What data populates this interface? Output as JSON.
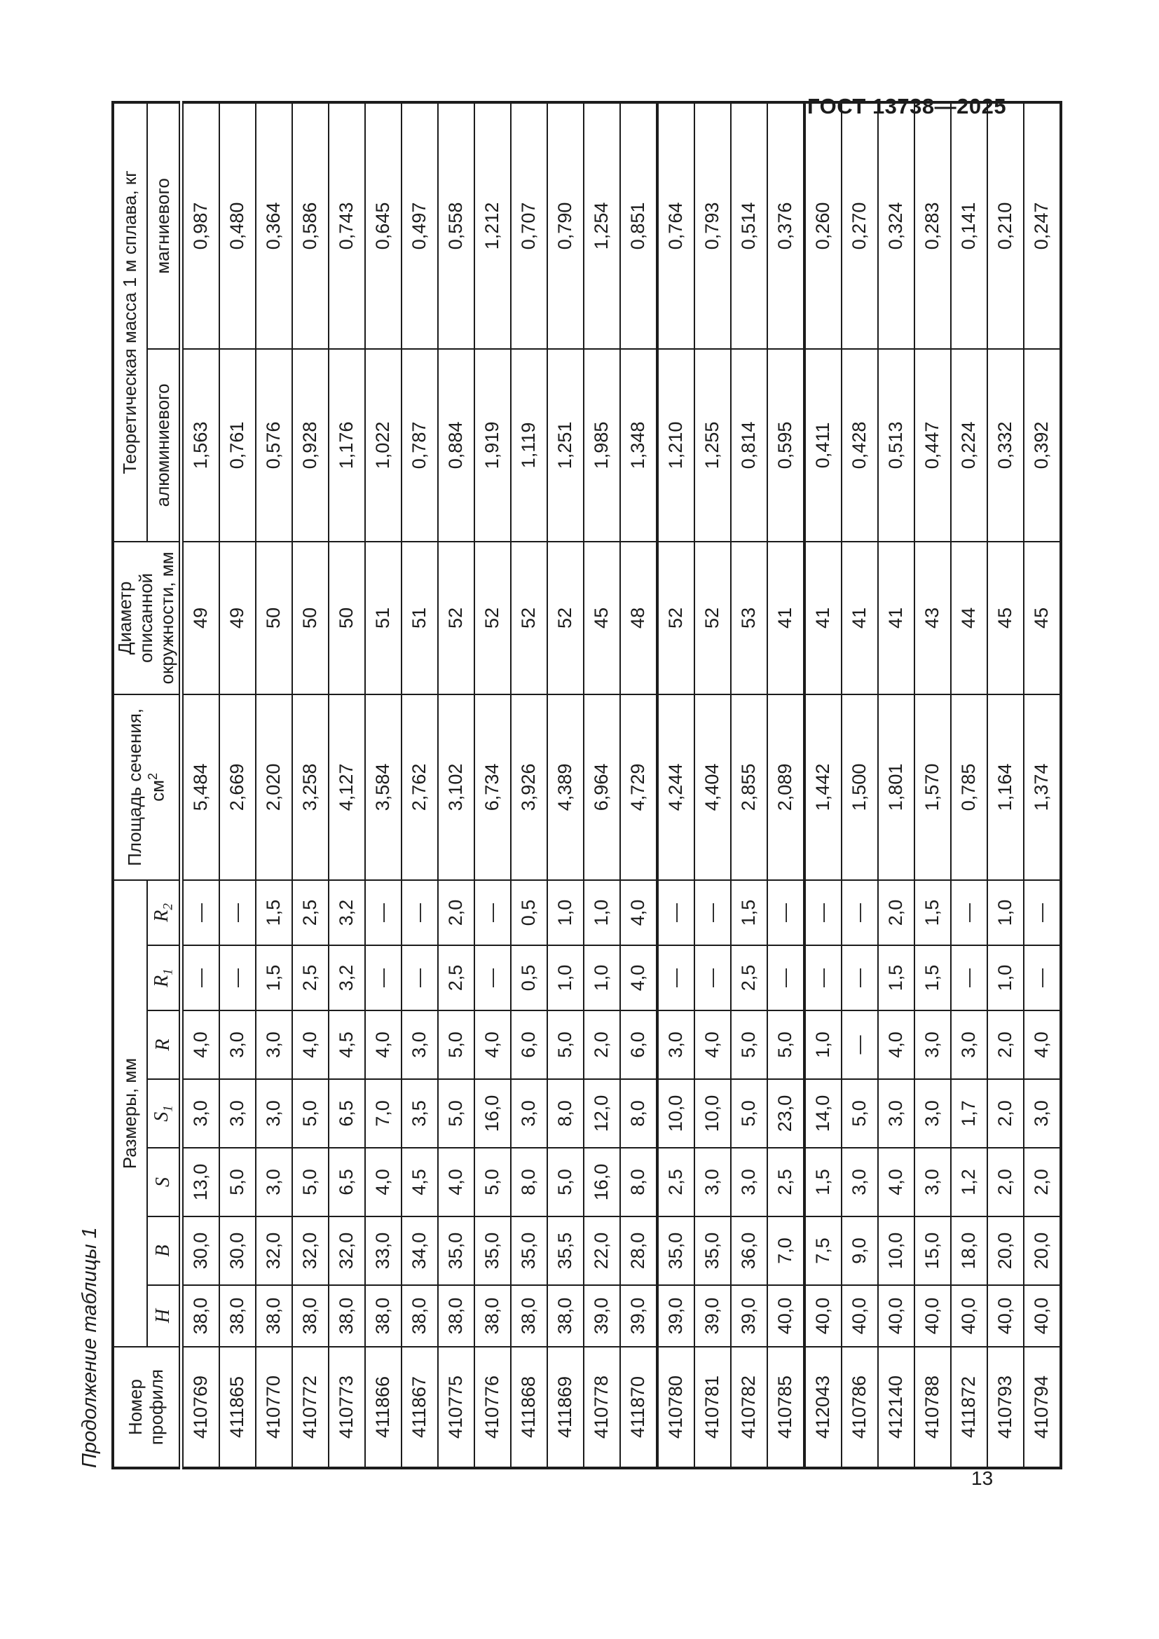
{
  "page": {
    "header": "ГОСТ 13738—2025",
    "number": "13"
  },
  "caption": "Продолжение таблицы 1",
  "table": {
    "col_profile": "Номер профиля",
    "group_dims": "Размеры, мм",
    "dim_cols": [
      {
        "main": "H",
        "sub": ""
      },
      {
        "main": "B",
        "sub": ""
      },
      {
        "main": "S",
        "sub": ""
      },
      {
        "main": "S",
        "sub": "1"
      },
      {
        "main": "R",
        "sub": ""
      },
      {
        "main": "R",
        "sub": "1"
      },
      {
        "main": "R",
        "sub": "2"
      }
    ],
    "col_area": {
      "text": "Площадь сечения, см",
      "sup": "2"
    },
    "col_diameter": "Диаметр описанной окружности, мм",
    "group_mass": "Теоретическая масса 1 м сплава, кг",
    "mass_cols": [
      "алюминиевого",
      "магниевого"
    ],
    "rows": [
      [
        "410769",
        "38,0",
        "30,0",
        "13,0",
        "3,0",
        "4,0",
        "—",
        "—",
        "5,484",
        "49",
        "1,563",
        "0,987"
      ],
      [
        "411865",
        "38,0",
        "30,0",
        "5,0",
        "3,0",
        "3,0",
        "—",
        "—",
        "2,669",
        "49",
        "0,761",
        "0,480"
      ],
      [
        "410770",
        "38,0",
        "32,0",
        "3,0",
        "3,0",
        "3,0",
        "1,5",
        "1,5",
        "2,020",
        "50",
        "0,576",
        "0,364"
      ],
      [
        "410772",
        "38,0",
        "32,0",
        "5,0",
        "5,0",
        "4,0",
        "2,5",
        "2,5",
        "3,258",
        "50",
        "0,928",
        "0,586"
      ],
      [
        "410773",
        "38,0",
        "32,0",
        "6,5",
        "6,5",
        "4,5",
        "3,2",
        "3,2",
        "4,127",
        "50",
        "1,176",
        "0,743"
      ],
      [
        "411866",
        "38,0",
        "33,0",
        "4,0",
        "7,0",
        "4,0",
        "—",
        "—",
        "3,584",
        "51",
        "1,022",
        "0,645"
      ],
      [
        "411867",
        "38,0",
        "34,0",
        "4,5",
        "3,5",
        "3,0",
        "—",
        "—",
        "2,762",
        "51",
        "0,787",
        "0,497"
      ],
      [
        "410775",
        "38,0",
        "35,0",
        "4,0",
        "5,0",
        "5,0",
        "2,5",
        "2,0",
        "3,102",
        "52",
        "0,884",
        "0,558"
      ],
      [
        "410776",
        "38,0",
        "35,0",
        "5,0",
        "16,0",
        "4,0",
        "—",
        "—",
        "6,734",
        "52",
        "1,919",
        "1,212"
      ],
      [
        "411868",
        "38,0",
        "35,0",
        "8,0",
        "3,0",
        "6,0",
        "0,5",
        "0,5",
        "3,926",
        "52",
        "1,119",
        "0,707"
      ],
      [
        "411869",
        "38,0",
        "35,5",
        "5,0",
        "8,0",
        "5,0",
        "1,0",
        "1,0",
        "4,389",
        "52",
        "1,251",
        "0,790"
      ],
      [
        "410778",
        "39,0",
        "22,0",
        "16,0",
        "12,0",
        "2,0",
        "1,0",
        "1,0",
        "6,964",
        "45",
        "1,985",
        "1,254"
      ],
      [
        "411870",
        "39,0",
        "28,0",
        "8,0",
        "8,0",
        "6,0",
        "4,0",
        "4,0",
        "4,729",
        "48",
        "1,348",
        "0,851"
      ],
      [
        "410780",
        "39,0",
        "35,0",
        "2,5",
        "10,0",
        "3,0",
        "—",
        "—",
        "4,244",
        "52",
        "1,210",
        "0,764"
      ],
      [
        "410781",
        "39,0",
        "35,0",
        "3,0",
        "10,0",
        "4,0",
        "—",
        "—",
        "4,404",
        "52",
        "1,255",
        "0,793"
      ],
      [
        "410782",
        "39,0",
        "36,0",
        "3,0",
        "5,0",
        "5,0",
        "2,5",
        "1,5",
        "2,855",
        "53",
        "0,814",
        "0,514"
      ],
      [
        "410785",
        "40,0",
        "7,0",
        "2,5",
        "23,0",
        "5,0",
        "—",
        "—",
        "2,089",
        "41",
        "0,595",
        "0,376"
      ],
      [
        "412043",
        "40,0",
        "7,5",
        "1,5",
        "14,0",
        "1,0",
        "—",
        "—",
        "1,442",
        "41",
        "0,411",
        "0,260"
      ],
      [
        "410786",
        "40,0",
        "9,0",
        "3,0",
        "5,0",
        "—",
        "—",
        "—",
        "1,500",
        "41",
        "0,428",
        "0,270"
      ],
      [
        "412140",
        "40,0",
        "10,0",
        "4,0",
        "3,0",
        "4,0",
        "1,5",
        "2,0",
        "1,801",
        "41",
        "0,513",
        "0,324"
      ],
      [
        "410788",
        "40,0",
        "15,0",
        "3,0",
        "3,0",
        "3,0",
        "1,5",
        "1,5",
        "1,570",
        "43",
        "0,447",
        "0,283"
      ],
      [
        "411872",
        "40,0",
        "18,0",
        "1,2",
        "1,7",
        "3,0",
        "—",
        "—",
        "0,785",
        "44",
        "0,224",
        "0,141"
      ],
      [
        "410793",
        "40,0",
        "20,0",
        "2,0",
        "2,0",
        "2,0",
        "1,0",
        "1,0",
        "1,164",
        "45",
        "0,332",
        "0,210"
      ],
      [
        "410794",
        "40,0",
        "20,0",
        "2,0",
        "3,0",
        "4,0",
        "—",
        "—",
        "1,374",
        "45",
        "0,392",
        "0,247"
      ]
    ]
  }
}
